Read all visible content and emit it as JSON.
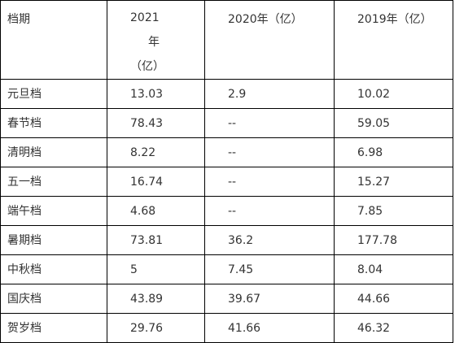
{
  "table": {
    "header": {
      "col0": "档期",
      "col1_year": "2021",
      "col1_nian": "年",
      "col1_unit": "（亿）",
      "col2": "2020年（亿）",
      "col3": "2019年（亿）"
    },
    "rows": [
      {
        "name": "元旦档",
        "y2021": "13.03",
        "y2020": "2.9",
        "y2019": "10.02"
      },
      {
        "name": "春节档",
        "y2021": "78.43",
        "y2020": "--",
        "y2019": "59.05"
      },
      {
        "name": "清明档",
        "y2021": "8.22",
        "y2020": "--",
        "y2019": "6.98"
      },
      {
        "name": "五一档",
        "y2021": "16.74",
        "y2020": "--",
        "y2019": "15.27"
      },
      {
        "name": "端午档",
        "y2021": "4.68",
        "y2020": "--",
        "y2019": "7.85"
      },
      {
        "name": "暑期档",
        "y2021": "73.81",
        "y2020": "36.2",
        "y2019": "177.78"
      },
      {
        "name": "中秋档",
        "y2021": "5",
        "y2020": "7.45",
        "y2019": "8.04"
      },
      {
        "name": "国庆档",
        "y2021": "43.89",
        "y2020": "39.67",
        "y2019": "44.66"
      },
      {
        "name": "贺岁档",
        "y2021": "29.76",
        "y2020": "41.66",
        "y2019": "46.32"
      }
    ]
  }
}
